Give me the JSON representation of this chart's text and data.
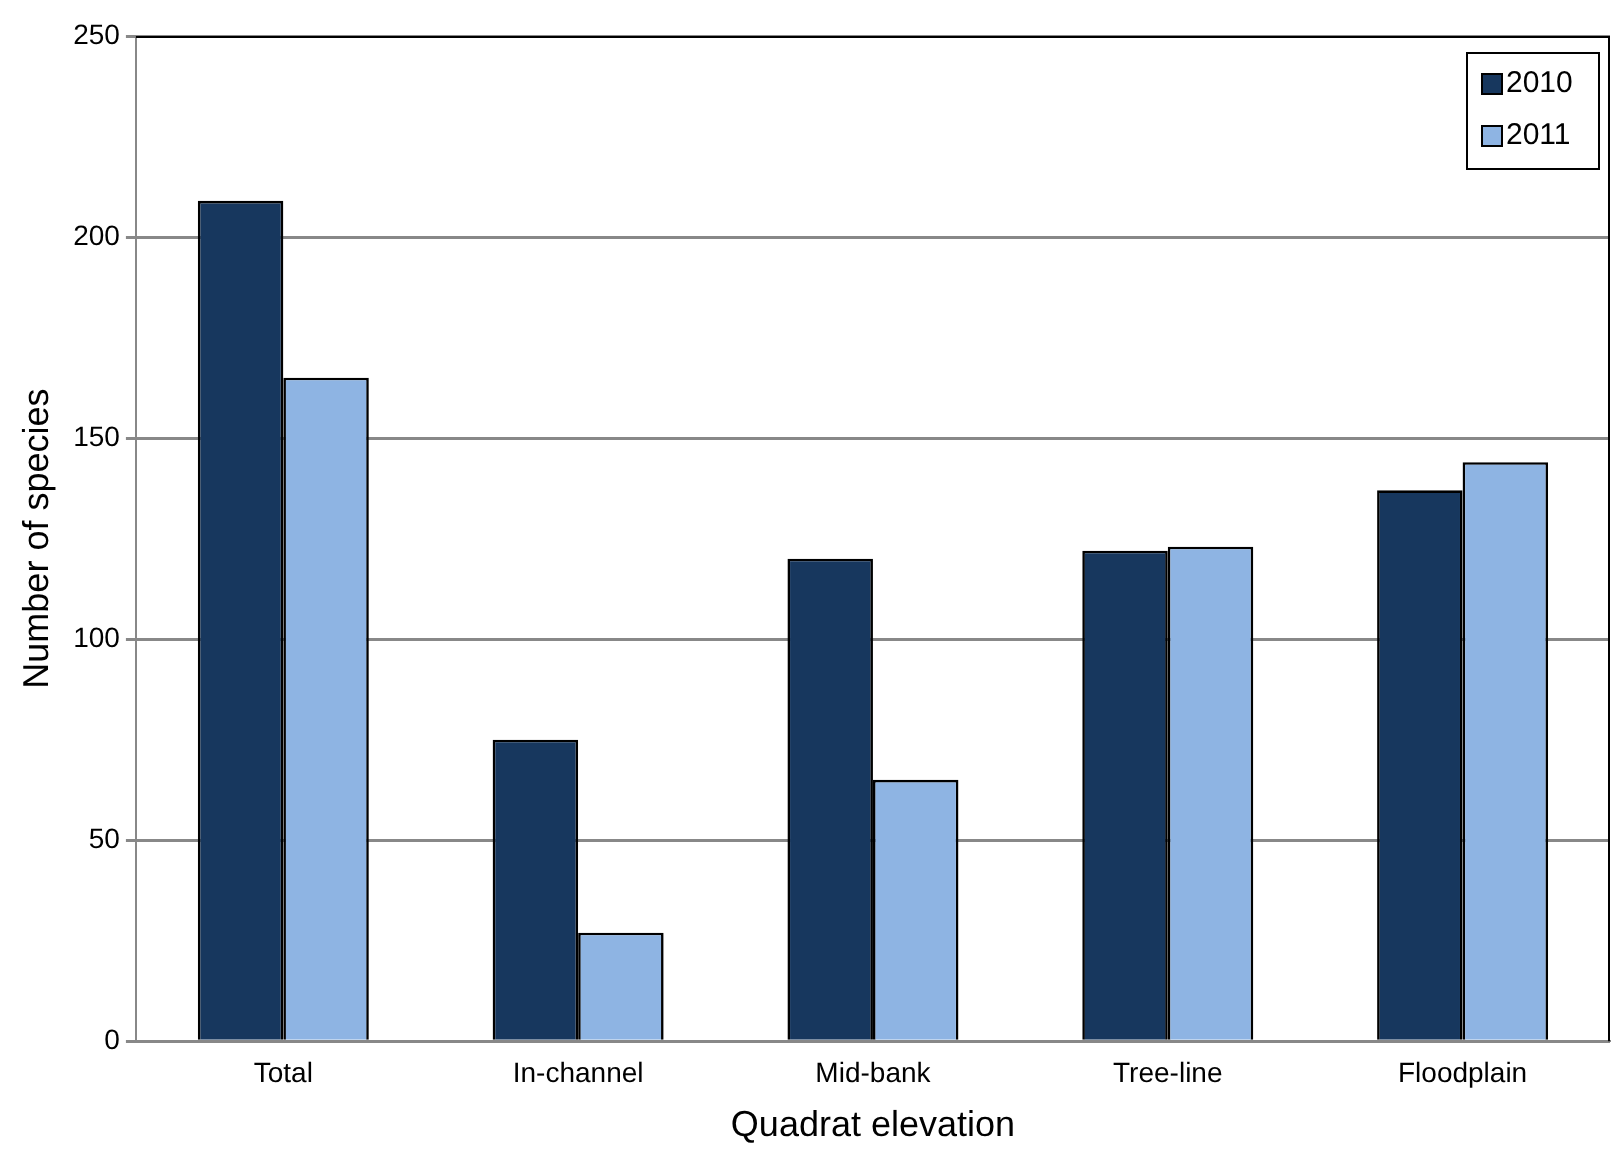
{
  "chart_data": {
    "type": "bar",
    "xlabel": "Quadrat elevation",
    "ylabel": "Number of species",
    "categories": [
      "Total",
      "In-channel",
      "Mid-bank",
      "Tree-line",
      "Floodplain"
    ],
    "series": [
      {
        "name": "2010",
        "color": "#17375e",
        "values": [
          209,
          75,
          120,
          122,
          137
        ]
      },
      {
        "name": "2011",
        "color": "#8eb4e3",
        "values": [
          165,
          27,
          65,
          123,
          144
        ]
      }
    ],
    "ylim": [
      0,
      250
    ],
    "yticks": [
      0,
      50,
      100,
      150,
      200,
      250
    ],
    "grid": "y",
    "legend": "top right"
  }
}
